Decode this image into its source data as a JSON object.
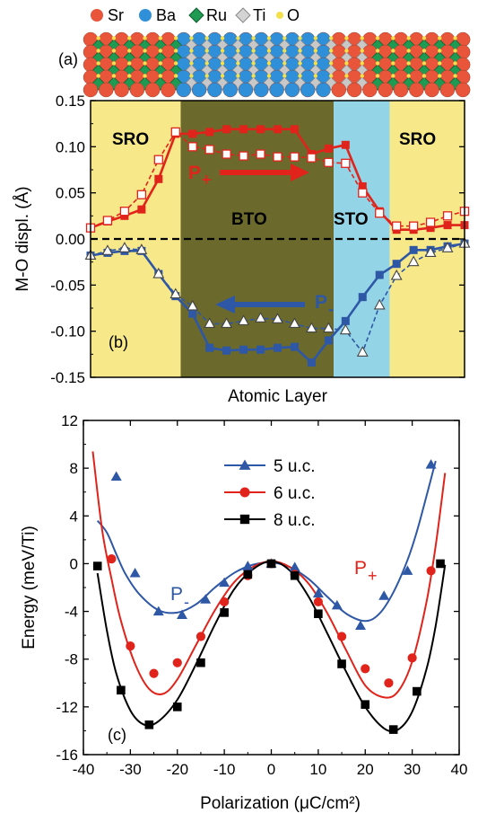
{
  "figure": {
    "atom_legend": [
      {
        "label": "Sr",
        "color": "#e8553b",
        "shape": "sphere"
      },
      {
        "label": "Ba",
        "color": "#2f8fd8",
        "shape": "sphere"
      },
      {
        "label": "Ru",
        "color": "#1e9a52",
        "shape": "diamond"
      },
      {
        "label": "Ti",
        "color": "#c8c8c8",
        "shape": "diamond"
      },
      {
        "label": "O",
        "color": "#f4e04a",
        "shape": "small-sphere"
      }
    ],
    "panel_labels": {
      "a": "(a)",
      "b": "(b)",
      "c": "(c)"
    }
  },
  "chart_data": [
    {
      "type": "line",
      "panel": "b",
      "xlabel": "Atomic Layer",
      "ylabel": "M-O displ. (Å)",
      "ylim": [
        -0.15,
        0.15
      ],
      "yticks": [
        -0.15,
        -0.1,
        -0.05,
        0.0,
        0.05,
        0.1,
        0.15
      ],
      "ytick_labels": [
        "-0.15",
        "-0.10",
        "-0.05",
        "0.00",
        "0.05",
        "0.10",
        "0.15"
      ],
      "xlim": [
        0,
        22
      ],
      "regions": [
        {
          "label": "SRO",
          "from": 0,
          "to": 5.3,
          "color": "#f7e98a"
        },
        {
          "label": "BTO",
          "from": 5.3,
          "to": 14.3,
          "color": "#6b6a2c"
        },
        {
          "label": "STO",
          "from": 14.3,
          "to": 17.6,
          "color": "#93d5e6"
        },
        {
          "label": "SRO",
          "from": 17.6,
          "to": 22,
          "color": "#f7e98a"
        }
      ],
      "annotations": {
        "p_plus": "P",
        "p_plus_sub": "+",
        "p_minus": "P",
        "p_minus_sub": "-"
      },
      "x": [
        0,
        1,
        2,
        3,
        4,
        5,
        6,
        7,
        8,
        9,
        10,
        11,
        12,
        13,
        14,
        15,
        16,
        17,
        18,
        19,
        20,
        21,
        22
      ],
      "series": [
        {
          "style": "filled-square",
          "color": "#e0231b",
          "values": [
            0.012,
            0.019,
            0.025,
            0.032,
            0.065,
            0.114,
            0.114,
            0.116,
            0.119,
            0.119,
            0.119,
            0.119,
            0.119,
            0.092,
            0.098,
            0.102,
            0.057,
            0.03,
            0.01,
            0.01,
            0.012,
            0.015,
            0.015
          ]
        },
        {
          "style": "open-square-dashed",
          "color": "#e0231b",
          "values": [
            0.012,
            0.02,
            0.03,
            0.048,
            0.086,
            0.116,
            0.1,
            0.097,
            0.092,
            0.09,
            0.092,
            0.089,
            0.089,
            0.088,
            0.083,
            0.082,
            0.05,
            0.028,
            0.014,
            0.014,
            0.018,
            0.025,
            0.03
          ]
        },
        {
          "style": "filled-square",
          "color": "#2e57a6",
          "values": [
            -0.018,
            -0.015,
            -0.013,
            -0.013,
            -0.038,
            -0.062,
            -0.081,
            -0.118,
            -0.121,
            -0.12,
            -0.12,
            -0.118,
            -0.117,
            -0.134,
            -0.11,
            -0.089,
            -0.063,
            -0.039,
            -0.027,
            -0.012,
            -0.012,
            -0.008,
            -0.005
          ]
        },
        {
          "style": "open-triangle-dashed",
          "color": "#2e57a6",
          "values": [
            -0.018,
            -0.013,
            -0.01,
            -0.012,
            -0.038,
            -0.06,
            -0.073,
            -0.092,
            -0.092,
            -0.089,
            -0.086,
            -0.087,
            -0.092,
            -0.097,
            -0.097,
            -0.099,
            -0.123,
            -0.072,
            -0.04,
            -0.025,
            -0.015,
            -0.01,
            -0.005
          ]
        }
      ]
    },
    {
      "type": "scatter",
      "panel": "c",
      "xlabel": "Polarization (μC/cm²)",
      "ylabel": "Energy (meV/Ti)",
      "xlim": [
        -40,
        40
      ],
      "ylim": [
        -16,
        12
      ],
      "xticks": [
        -40,
        -30,
        -20,
        -10,
        0,
        10,
        20,
        30,
        40
      ],
      "xtick_labels": [
        "-40",
        "-30",
        "-20",
        "-10",
        "0",
        "10",
        "20",
        "30",
        "40"
      ],
      "yticks": [
        -16,
        -12,
        -8,
        -4,
        0,
        4,
        8,
        12
      ],
      "ytick_labels": [
        "-16",
        "-12",
        "-8",
        "-4",
        "0",
        "4",
        "8",
        "12"
      ],
      "legend_position": "upper-center",
      "annotations": {
        "p_minus": "P",
        "p_minus_sub": "-",
        "p_plus": "P",
        "p_plus_sub": "+"
      },
      "series": [
        {
          "name": "5 u.c.",
          "color": "#2e57a6",
          "marker": "triangle",
          "points": [
            [
              -33,
              7.3
            ],
            [
              -29,
              -0.8
            ],
            [
              -24,
              -4.0
            ],
            [
              -19,
              -4.3
            ],
            [
              -14,
              -3.0
            ],
            [
              -10,
              -1.6
            ],
            [
              -5,
              -0.2
            ],
            [
              0,
              0.0
            ],
            [
              5,
              -0.3
            ],
            [
              10,
              -2.5
            ],
            [
              14,
              -3.5
            ],
            [
              19,
              -5.2
            ],
            [
              24,
              -2.7
            ],
            [
              29,
              -0.6
            ],
            [
              34,
              8.3
            ]
          ],
          "fit": [
            [
              -37,
              3.6
            ],
            [
              -35,
              2.6
            ],
            [
              -33,
              0.8
            ],
            [
              -31,
              -0.9
            ],
            [
              -28,
              -2.6
            ],
            [
              -24,
              -3.9
            ],
            [
              -20,
              -4.1
            ],
            [
              -16,
              -3.4
            ],
            [
              -12,
              -2.0
            ],
            [
              -8,
              -0.8
            ],
            [
              -4,
              -0.1
            ],
            [
              0,
              0.1
            ],
            [
              4,
              -0.3
            ],
            [
              8,
              -1.3
            ],
            [
              12,
              -2.8
            ],
            [
              16,
              -4.2
            ],
            [
              20,
              -4.8
            ],
            [
              23,
              -4.2
            ],
            [
              26,
              -2.4
            ],
            [
              29,
              0.3
            ],
            [
              31,
              2.7
            ],
            [
              33,
              5.6
            ],
            [
              35,
              8.6
            ]
          ]
        },
        {
          "name": "6 u.c.",
          "color": "#e0231b",
          "marker": "circle",
          "points": [
            [
              -34,
              0.4
            ],
            [
              -30,
              -6.9
            ],
            [
              -25,
              -9.2
            ],
            [
              -20,
              -8.3
            ],
            [
              -15,
              -6.1
            ],
            [
              -10,
              -3.2
            ],
            [
              -5,
              -1.0
            ],
            [
              0,
              0.0
            ],
            [
              5,
              -0.9
            ],
            [
              10,
              -3.2
            ],
            [
              15,
              -6.1
            ],
            [
              20,
              -8.8
            ],
            [
              25,
              -10.0
            ],
            [
              30,
              -7.9
            ],
            [
              34,
              -0.6
            ]
          ],
          "fit": [
            [
              -38,
              9.4
            ],
            [
              -36,
              2.8
            ],
            [
              -34,
              -1.3
            ],
            [
              -32,
              -4.8
            ],
            [
              -29,
              -8.4
            ],
            [
              -26,
              -10.5
            ],
            [
              -23,
              -10.9
            ],
            [
              -20,
              -9.7
            ],
            [
              -16,
              -6.8
            ],
            [
              -12,
              -3.9
            ],
            [
              -8,
              -1.6
            ],
            [
              -4,
              -0.3
            ],
            [
              0,
              0.2
            ],
            [
              4,
              -0.3
            ],
            [
              8,
              -1.7
            ],
            [
              12,
              -4.2
            ],
            [
              16,
              -7.3
            ],
            [
              20,
              -10.2
            ],
            [
              24,
              -11.2
            ],
            [
              27,
              -10.7
            ],
            [
              30,
              -8.2
            ],
            [
              33,
              -3.3
            ],
            [
              35,
              1.5
            ],
            [
              37,
              7.6
            ]
          ]
        },
        {
          "name": "8 u.c.",
          "color": "#000000",
          "marker": "square",
          "points": [
            [
              -37,
              -0.2
            ],
            [
              -32,
              -10.6
            ],
            [
              -26,
              -13.5
            ],
            [
              -20,
              -12.0
            ],
            [
              -15,
              -8.3
            ],
            [
              -10,
              -4.1
            ],
            [
              -5,
              -0.9
            ],
            [
              0,
              0.0
            ],
            [
              5,
              -1.0
            ],
            [
              10,
              -4.2
            ],
            [
              15,
              -8.4
            ],
            [
              20,
              -11.8
            ],
            [
              26,
              -13.9
            ],
            [
              31,
              -10.7
            ],
            [
              36,
              0.0
            ]
          ],
          "fit": [
            [
              -37,
              -0.8
            ],
            [
              -35,
              -5.6
            ],
            [
              -33,
              -9.2
            ],
            [
              -30,
              -12.3
            ],
            [
              -27,
              -13.5
            ],
            [
              -24,
              -13.2
            ],
            [
              -20,
              -11.4
            ],
            [
              -16,
              -8.4
            ],
            [
              -12,
              -5.1
            ],
            [
              -8,
              -2.2
            ],
            [
              -4,
              -0.5
            ],
            [
              0,
              0.2
            ],
            [
              4,
              -0.6
            ],
            [
              8,
              -2.8
            ],
            [
              12,
              -5.9
            ],
            [
              16,
              -9.1
            ],
            [
              20,
              -12.0
            ],
            [
              24,
              -13.8
            ],
            [
              27,
              -13.9
            ],
            [
              30,
              -12.4
            ],
            [
              33,
              -8.9
            ],
            [
              35,
              -5.2
            ],
            [
              37,
              -0.1
            ]
          ]
        }
      ]
    }
  ]
}
